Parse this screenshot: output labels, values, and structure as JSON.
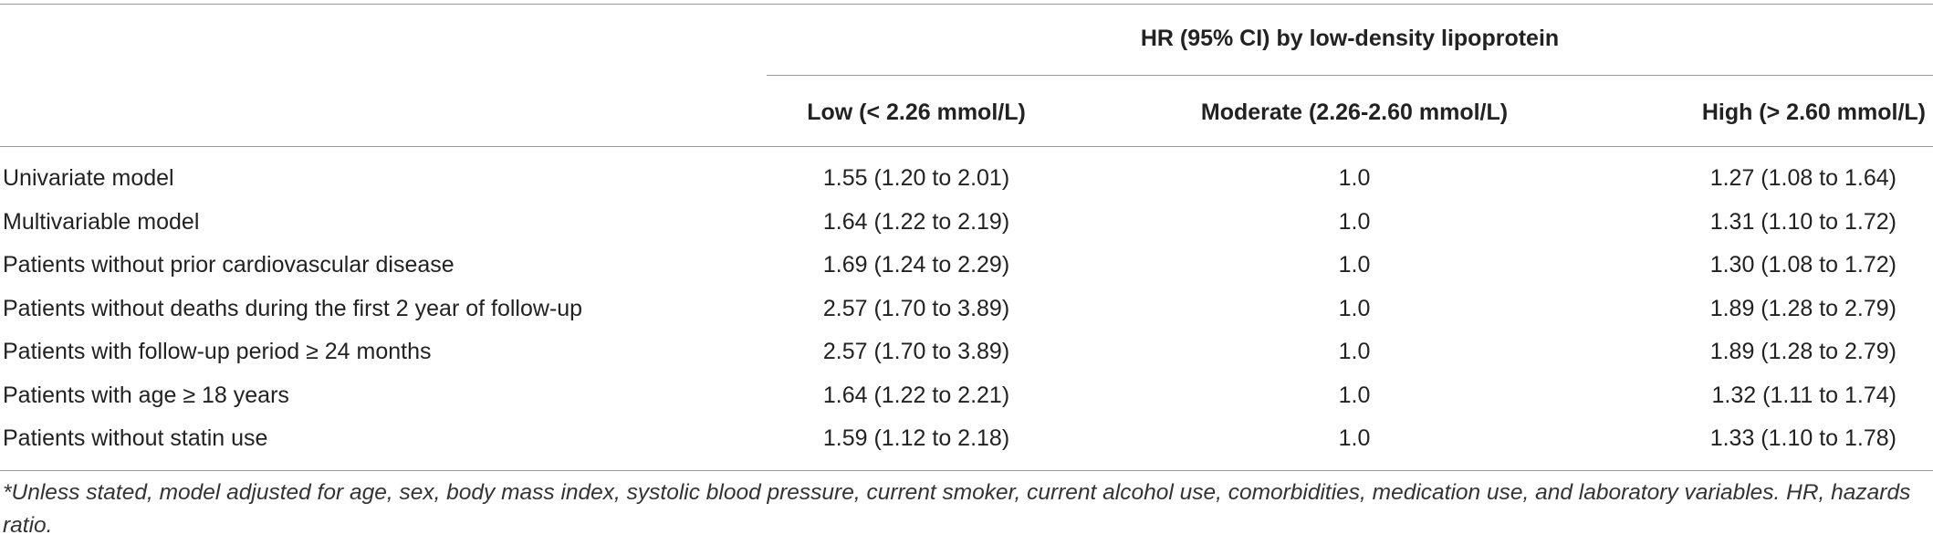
{
  "table": {
    "group_header": "HR (95% CI) by low-density lipoprotein",
    "columns": [
      "Low (< 2.26 mmol/L)",
      "Moderate (2.26-2.60 mmol/L)",
      "High (> 2.60 mmol/L)"
    ],
    "rows": [
      {
        "label": "Univariate model",
        "low": "1.55 (1.20 to 2.01)",
        "moderate": "1.0",
        "high": "1.27 (1.08 to 1.64)"
      },
      {
        "label": "Multivariable model",
        "low": "1.64 (1.22 to 2.19)",
        "moderate": "1.0",
        "high": "1.31 (1.10 to 1.72)"
      },
      {
        "label": "Patients without prior cardiovascular disease",
        "low": "1.69 (1.24 to 2.29)",
        "moderate": "1.0",
        "high": "1.30 (1.08 to 1.72)"
      },
      {
        "label": "Patients without deaths during the first 2 year of follow-up",
        "low": "2.57 (1.70 to 3.89)",
        "moderate": "1.0",
        "high": "1.89 (1.28 to 2.79)"
      },
      {
        "label": "Patients with follow-up period ≥ 24 months",
        "low": "2.57 (1.70 to 3.89)",
        "moderate": "1.0",
        "high": "1.89 (1.28 to 2.79)"
      },
      {
        "label": "Patients with age ≥ 18 years",
        "low": "1.64 (1.22 to 2.21)",
        "moderate": "1.0",
        "high": "1.32 (1.11 to 1.74)"
      },
      {
        "label": "Patients without statin use",
        "low": "1.59 (1.12 to 2.18)",
        "moderate": "1.0",
        "high": "1.33 (1.10 to 1.78)"
      }
    ]
  },
  "footnote": "*Unless stated, model adjusted for age, sex, body mass index, systolic blood pressure, current smoker, current alcohol use, comorbidities, medication use, and laboratory variables. HR, hazards ratio."
}
